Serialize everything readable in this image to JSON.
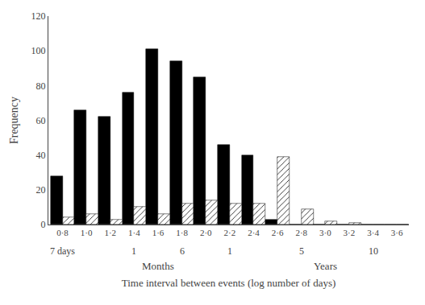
{
  "chart_data": {
    "type": "bar",
    "categories": [
      "0·8",
      "1·0",
      "1·2",
      "1·4",
      "1·6",
      "1·8",
      "2·0",
      "2·2",
      "2·4",
      "2·6",
      "2·8",
      "3·0",
      "3·2",
      "3·4",
      "3·6"
    ],
    "series": [
      {
        "color": "#000000",
        "values": [
          28,
          66,
          62,
          76,
          101,
          94,
          85,
          46,
          40,
          3,
          0,
          0,
          0,
          0,
          0
        ]
      },
      {
        "color": "#ffffff",
        "values": [
          4,
          6,
          3,
          10,
          6,
          12,
          14,
          12,
          12,
          39,
          9,
          2,
          1,
          0,
          0
        ]
      }
    ],
    "ylim": [
      0,
      120
    ],
    "yticks": [
      0,
      20,
      40,
      60,
      80,
      100,
      120
    ],
    "ylabel": "Frequency",
    "xlabel": "Time interval between events (log number of days)",
    "grid": false,
    "annotations": [
      [
        {
          "x": "0·8",
          "text": "7 days"
        },
        {
          "x": "1·4",
          "text": "1"
        },
        {
          "x": "1·8",
          "text": "6"
        },
        {
          "x": "2·2",
          "text": "1"
        },
        {
          "x": "2·8",
          "text": "5"
        },
        {
          "x": "3·4",
          "text": "10"
        }
      ],
      [
        {
          "x": "1·6",
          "text": "Months"
        },
        {
          "x": "3·0",
          "text": "Years"
        }
      ]
    ]
  }
}
